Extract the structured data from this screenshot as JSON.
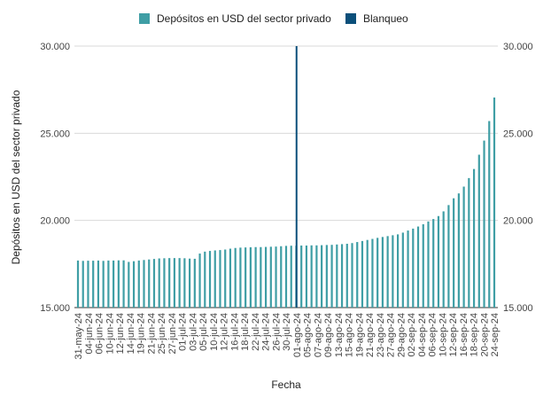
{
  "chart_data": {
    "type": "bar",
    "title": "",
    "xlabel": "Fecha",
    "ylabel": "Depósitos en USD del sector privado",
    "ylim": [
      15000,
      30000
    ],
    "y_ticks": [
      "15.000",
      "20.000",
      "25.000",
      "30.000"
    ],
    "y_tick_values": [
      15000,
      20000,
      25000,
      30000
    ],
    "grid": true,
    "legend": "top-center",
    "legend_items": [
      {
        "label": "Depósitos en USD del sector privado",
        "color": "#3f9ea5"
      },
      {
        "label": "Blanqueo",
        "color": "#0b4f7a"
      }
    ],
    "series": [
      {
        "name": "Depósitos en USD del sector privado",
        "color": "#3f9ea5",
        "values": [
          17700,
          17680,
          17690,
          17690,
          17700,
          17680,
          17700,
          17700,
          17710,
          17710,
          17620,
          17660,
          17700,
          17730,
          17760,
          17790,
          17820,
          17830,
          17840,
          17840,
          17840,
          17830,
          17810,
          17800,
          18100,
          18210,
          18250,
          18280,
          18300,
          18330,
          18380,
          18420,
          18440,
          18450,
          18460,
          18470,
          18470,
          18480,
          18490,
          18500,
          18520,
          18540,
          18550,
          18550,
          18560,
          18560,
          18570,
          18570,
          18580,
          18590,
          18600,
          18620,
          18640,
          18660,
          18700,
          18760,
          18820,
          18880,
          18940,
          19000,
          19050,
          19100,
          19150,
          19200,
          19300,
          19420,
          19530,
          19650,
          19780,
          19940,
          20080,
          20250,
          20520,
          20880,
          21270,
          21550,
          21940,
          22430,
          22950,
          23770,
          24580,
          25700,
          27050
        ]
      },
      {
        "name": "Blanqueo",
        "color": "#0b4f7a",
        "date": "01-ago-24"
      }
    ],
    "x_tick_labels": [
      "31-may-24",
      "04-jun-24",
      "06-jun-24",
      "10-jun-24",
      "12-jun-24",
      "14-jun-24",
      "19-jun-24",
      "21-jun-24",
      "25-jun-24",
      "27-jun-24",
      "01-jul-24",
      "03-jul-24",
      "05-jul-24",
      "10-jul-24",
      "12-jul-24",
      "16-jul-24",
      "18-jul-24",
      "22-jul-24",
      "24-jul-24",
      "26-jul-24",
      "30-jul-24",
      "01-ago-24",
      "05-ago-24",
      "07-ago-24",
      "09-ago-24",
      "13-ago-24",
      "15-ago-24",
      "19-ago-24",
      "21-ago-24",
      "23-ago-24",
      "27-ago-24",
      "29-ago-24",
      "02-sep-24",
      "04-sep-24",
      "06-sep-24",
      "10-sep-24",
      "12-sep-24",
      "16-sep-24",
      "18-sep-24",
      "20-sep-24",
      "24-sep-24"
    ]
  }
}
